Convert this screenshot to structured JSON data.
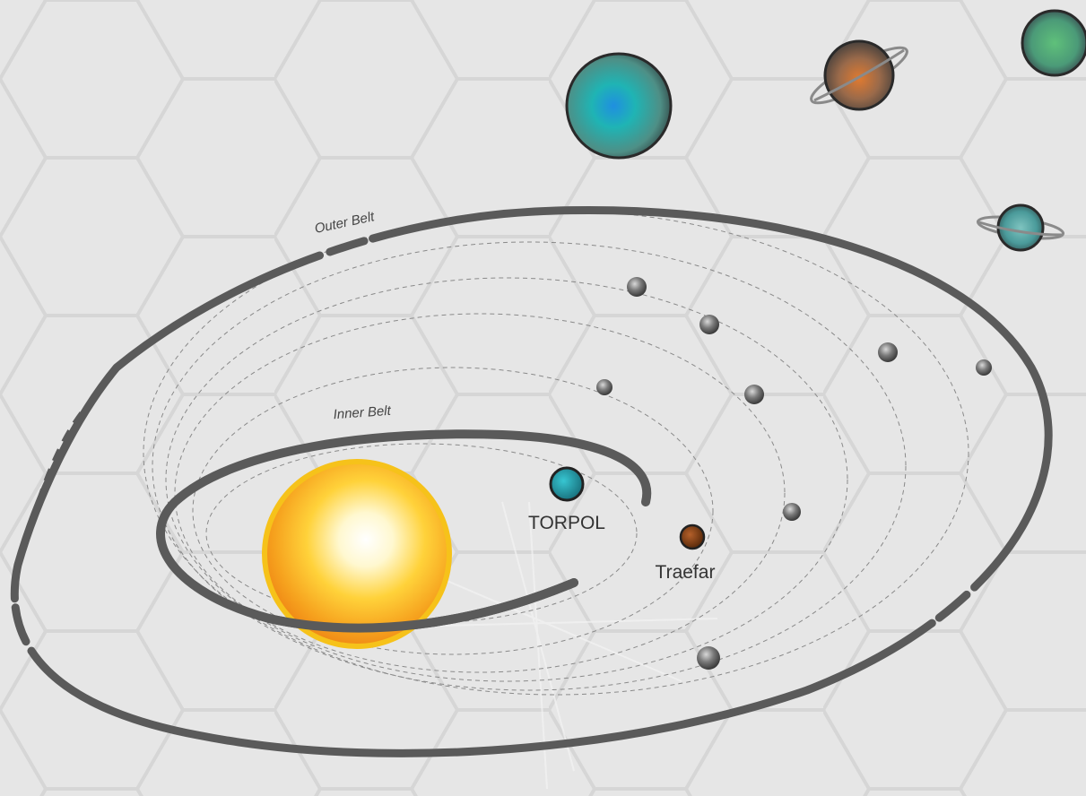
{
  "map": {
    "labels": {
      "outer_belt": "Outer Belt",
      "inner_belt": "Inner Belt",
      "torpol": "TORPOL",
      "traefar": "Traefar"
    },
    "colors": {
      "background": "#e6e6e6",
      "hex_grid": "#d3d3d3",
      "belt": "#5a5a5a",
      "orbit_line": "#8a8a8a",
      "sun_core": "#ffffff",
      "sun_mid": "#ffd23a",
      "sun_edge": "#f08a16",
      "torpol": "#1f9aa6",
      "traefar": "#7a3a10",
      "moon_gray": "#6a6a6a",
      "gas_giant_teal": "#1aa8a8",
      "ringed_orange": "#c97a3a",
      "green_planet": "#4fb07a",
      "ringed_teal": "#5aa6a6"
    },
    "icons": [
      "sun-icon",
      "planet-icon",
      "ringed-planet-icon",
      "moon-icon"
    ]
  }
}
